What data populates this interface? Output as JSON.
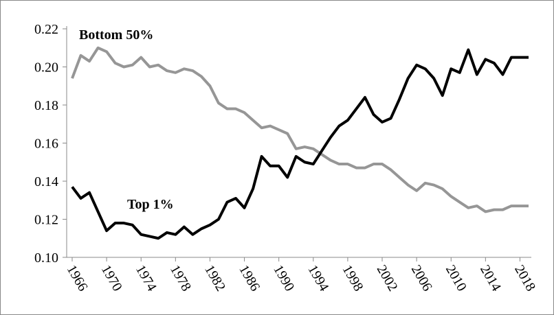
{
  "chart_data": {
    "type": "line",
    "x": [
      1966,
      1967,
      1968,
      1969,
      1970,
      1971,
      1972,
      1973,
      1974,
      1975,
      1976,
      1977,
      1978,
      1979,
      1980,
      1981,
      1982,
      1983,
      1984,
      1985,
      1986,
      1987,
      1988,
      1989,
      1990,
      1991,
      1992,
      1993,
      1994,
      1995,
      1996,
      1997,
      1998,
      1999,
      2000,
      2001,
      2002,
      2003,
      2004,
      2005,
      2006,
      2007,
      2008,
      2009,
      2010,
      2011,
      2012,
      2013,
      2014,
      2015,
      2016,
      2017,
      2018,
      2019
    ],
    "series": [
      {
        "name": "Bottom 50%",
        "color": "#969696",
        "values": [
          0.194,
          0.206,
          0.203,
          0.21,
          0.208,
          0.202,
          0.2,
          0.201,
          0.205,
          0.2,
          0.201,
          0.198,
          0.197,
          0.199,
          0.198,
          0.195,
          0.19,
          0.181,
          0.178,
          0.178,
          0.176,
          0.172,
          0.168,
          0.169,
          0.167,
          0.165,
          0.157,
          0.158,
          0.157,
          0.154,
          0.151,
          0.149,
          0.149,
          0.147,
          0.147,
          0.149,
          0.149,
          0.146,
          0.142,
          0.138,
          0.135,
          0.139,
          0.138,
          0.136,
          0.132,
          0.129,
          0.126,
          0.127,
          0.124,
          0.125,
          0.125,
          0.127,
          0.127,
          0.127
        ]
      },
      {
        "name": "Top 1%",
        "color": "#000000",
        "values": [
          0.137,
          0.131,
          0.134,
          0.124,
          0.114,
          0.118,
          0.118,
          0.117,
          0.112,
          0.111,
          0.11,
          0.113,
          0.112,
          0.116,
          0.112,
          0.115,
          0.117,
          0.12,
          0.129,
          0.131,
          0.126,
          0.136,
          0.153,
          0.148,
          0.148,
          0.142,
          0.153,
          0.15,
          0.149,
          0.156,
          0.163,
          0.169,
          0.172,
          0.178,
          0.184,
          0.175,
          0.171,
          0.173,
          0.183,
          0.194,
          0.201,
          0.199,
          0.194,
          0.185,
          0.199,
          0.197,
          0.209,
          0.196,
          0.204,
          0.202,
          0.196,
          0.205,
          0.205,
          0.205
        ]
      }
    ],
    "xlim": [
      1966,
      2019
    ],
    "xticks": [
      1966,
      1970,
      1974,
      1978,
      1982,
      1986,
      1990,
      1994,
      1998,
      2002,
      2006,
      2010,
      2014,
      2018
    ],
    "ylim": [
      0.1,
      0.22
    ],
    "yticks": [
      {
        "value": 0.1,
        "label": "0.10"
      },
      {
        "value": 0.12,
        "label": "0.12"
      },
      {
        "value": 0.14,
        "label": "0.14"
      },
      {
        "value": 0.16,
        "label": "0.16"
      },
      {
        "value": 0.18,
        "label": "0.18"
      },
      {
        "value": 0.2,
        "label": "0.20"
      },
      {
        "value": 0.22,
        "label": "0.22"
      }
    ],
    "grid": false
  }
}
